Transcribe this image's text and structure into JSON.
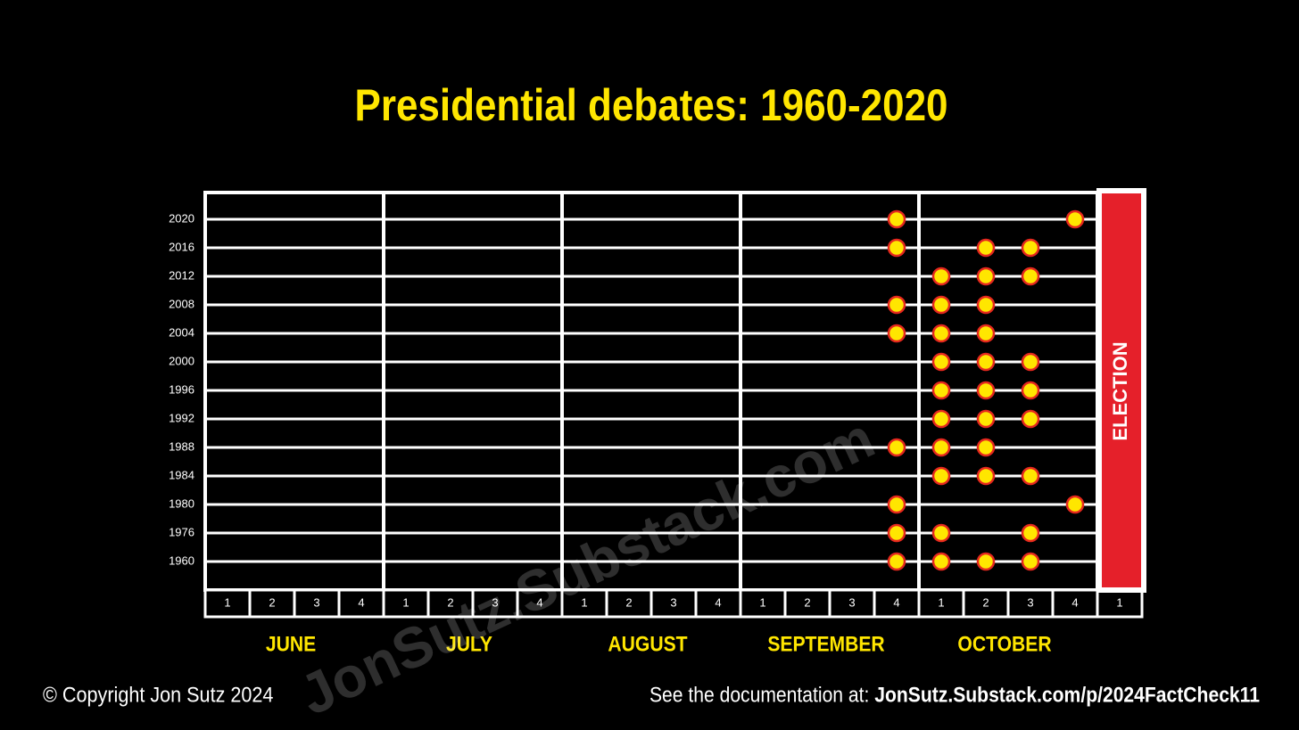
{
  "chart_data": {
    "type": "dot-grid",
    "title": "Presidential debates: 1960-2020",
    "months": [
      {
        "name": "JUNE",
        "weeks": [
          1,
          2,
          3,
          4
        ]
      },
      {
        "name": "JULY",
        "weeks": [
          1,
          2,
          3,
          4
        ]
      },
      {
        "name": "AUGUST",
        "weeks": [
          1,
          2,
          3,
          4
        ]
      },
      {
        "name": "SEPTEMBER",
        "weeks": [
          1,
          2,
          3,
          4
        ]
      },
      {
        "name": "OCTOBER",
        "weeks": [
          1,
          2,
          3,
          4
        ]
      },
      {
        "name": null,
        "weeks": [
          1
        ]
      }
    ],
    "end_marker": "ELECTION",
    "dot_color": "#ffe600",
    "dot_edge": "#e5281e",
    "series": [
      {
        "name": "2020",
        "values": [
          {
            "month": "SEPTEMBER",
            "week": 4
          },
          {
            "month": "OCTOBER",
            "week": 4
          }
        ]
      },
      {
        "name": "2016",
        "values": [
          {
            "month": "SEPTEMBER",
            "week": 4
          },
          {
            "month": "OCTOBER",
            "week": 2
          },
          {
            "month": "OCTOBER",
            "week": 3
          }
        ]
      },
      {
        "name": "2012",
        "values": [
          {
            "month": "OCTOBER",
            "week": 1
          },
          {
            "month": "OCTOBER",
            "week": 2
          },
          {
            "month": "OCTOBER",
            "week": 3
          }
        ]
      },
      {
        "name": "2008",
        "values": [
          {
            "month": "SEPTEMBER",
            "week": 4
          },
          {
            "month": "OCTOBER",
            "week": 1
          },
          {
            "month": "OCTOBER",
            "week": 2
          }
        ]
      },
      {
        "name": "2004",
        "values": [
          {
            "month": "SEPTEMBER",
            "week": 4
          },
          {
            "month": "OCTOBER",
            "week": 1
          },
          {
            "month": "OCTOBER",
            "week": 2
          }
        ]
      },
      {
        "name": "2000",
        "values": [
          {
            "month": "OCTOBER",
            "week": 1
          },
          {
            "month": "OCTOBER",
            "week": 2
          },
          {
            "month": "OCTOBER",
            "week": 3
          }
        ]
      },
      {
        "name": "1996",
        "values": [
          {
            "month": "OCTOBER",
            "week": 1
          },
          {
            "month": "OCTOBER",
            "week": 2
          },
          {
            "month": "OCTOBER",
            "week": 3
          }
        ]
      },
      {
        "name": "1992",
        "values": [
          {
            "month": "OCTOBER",
            "week": 1
          },
          {
            "month": "OCTOBER",
            "week": 2
          },
          {
            "month": "OCTOBER",
            "week": 3
          }
        ]
      },
      {
        "name": "1988",
        "values": [
          {
            "month": "SEPTEMBER",
            "week": 4
          },
          {
            "month": "OCTOBER",
            "week": 1
          },
          {
            "month": "OCTOBER",
            "week": 2
          }
        ]
      },
      {
        "name": "1984",
        "values": [
          {
            "month": "OCTOBER",
            "week": 1
          },
          {
            "month": "OCTOBER",
            "week": 2
          },
          {
            "month": "OCTOBER",
            "week": 3
          }
        ]
      },
      {
        "name": "1980",
        "values": [
          {
            "month": "SEPTEMBER",
            "week": 4
          },
          {
            "month": "OCTOBER",
            "week": 4
          }
        ]
      },
      {
        "name": "1976",
        "values": [
          {
            "month": "SEPTEMBER",
            "week": 4
          },
          {
            "month": "OCTOBER",
            "week": 1
          },
          {
            "month": "OCTOBER",
            "week": 3
          }
        ]
      },
      {
        "name": "1960",
        "values": [
          {
            "month": "SEPTEMBER",
            "week": 4
          },
          {
            "month": "OCTOBER",
            "week": 1
          },
          {
            "month": "OCTOBER",
            "week": 2
          },
          {
            "month": "OCTOBER",
            "week": 3
          }
        ]
      }
    ],
    "watermark": "JonSutz.Substack.com",
    "copyright": "© Copyright Jon Sutz 2024",
    "doc_prefix": "See the documentation at:",
    "doc_link": "JonSutz.Substack.com/p/2024FactCheck11"
  }
}
